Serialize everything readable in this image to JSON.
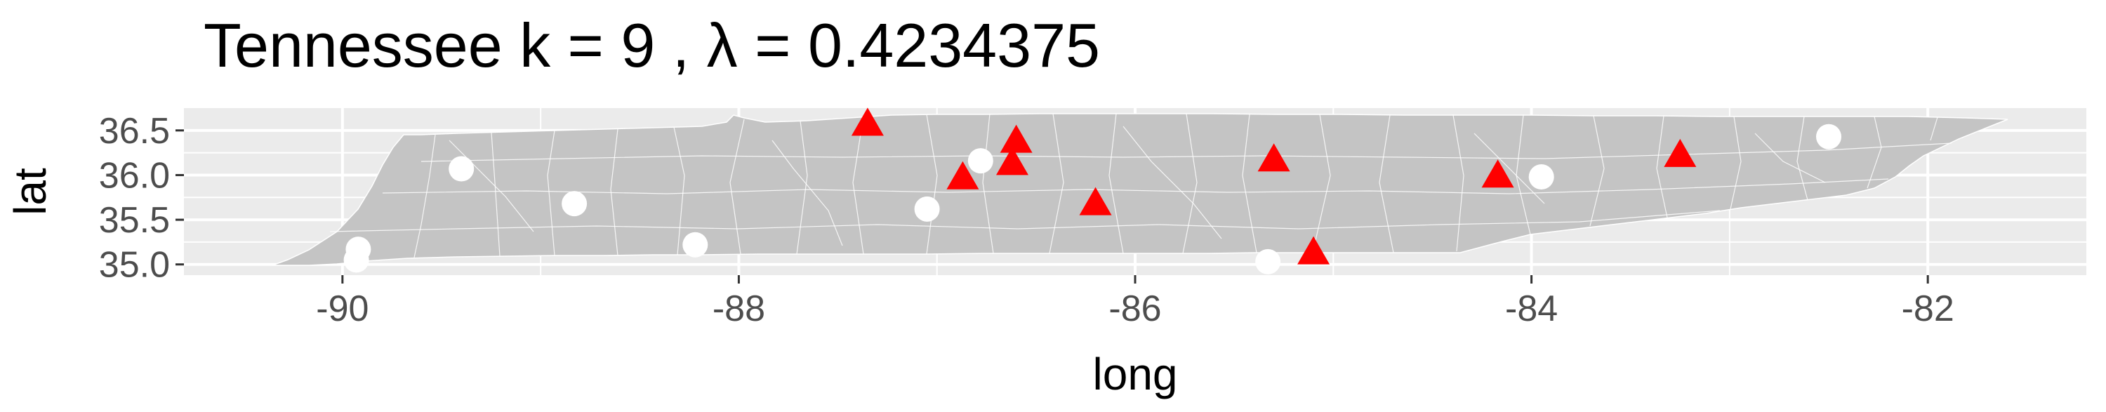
{
  "chart_data": {
    "type": "scatter",
    "title": "Tennessee  k =  9 ,  λ  =  0.4234375",
    "xlabel": "long",
    "ylabel": "lat",
    "xlim": [
      -90.8,
      -81.2
    ],
    "ylim": [
      34.88,
      36.75
    ],
    "x_ticks": [
      -90,
      -88,
      -86,
      -84,
      -82
    ],
    "x_tick_labels": [
      "-90",
      "-88",
      "-86",
      "-84",
      "-82"
    ],
    "y_ticks": [
      35.0,
      35.5,
      36.0,
      36.5
    ],
    "y_tick_labels": [
      "35.0",
      "35.5",
      "36.0",
      "36.5"
    ],
    "grid": true,
    "legend": "none",
    "colors": {
      "panel": "#ebebeb",
      "grid_major": "#ffffff",
      "state_fill": "#c4c4c4",
      "county_border": "#ffffff",
      "triangle": "#ff0000",
      "circle": "#ffffff"
    },
    "series": [
      {
        "marker": "triangle",
        "color": "#ff0000",
        "points": [
          {
            "x": -87.35,
            "y": 36.56
          },
          {
            "x": -86.6,
            "y": 36.37
          },
          {
            "x": -86.62,
            "y": 36.12
          },
          {
            "x": -86.87,
            "y": 35.96
          },
          {
            "x": -86.2,
            "y": 35.67
          },
          {
            "x": -85.3,
            "y": 36.16
          },
          {
            "x": -85.1,
            "y": 35.12
          },
          {
            "x": -84.17,
            "y": 35.98
          },
          {
            "x": -83.25,
            "y": 36.21
          }
        ]
      },
      {
        "marker": "circle",
        "color": "#ffffff",
        "points": [
          {
            "x": -89.4,
            "y": 36.07
          },
          {
            "x": -89.92,
            "y": 35.17
          },
          {
            "x": -89.93,
            "y": 35.05
          },
          {
            "x": -88.83,
            "y": 35.68
          },
          {
            "x": -88.22,
            "y": 35.22
          },
          {
            "x": -87.05,
            "y": 35.62
          },
          {
            "x": -86.78,
            "y": 36.16
          },
          {
            "x": -85.33,
            "y": 35.03
          },
          {
            "x": -83.95,
            "y": 35.98
          },
          {
            "x": -82.5,
            "y": 36.43
          }
        ]
      }
    ]
  }
}
